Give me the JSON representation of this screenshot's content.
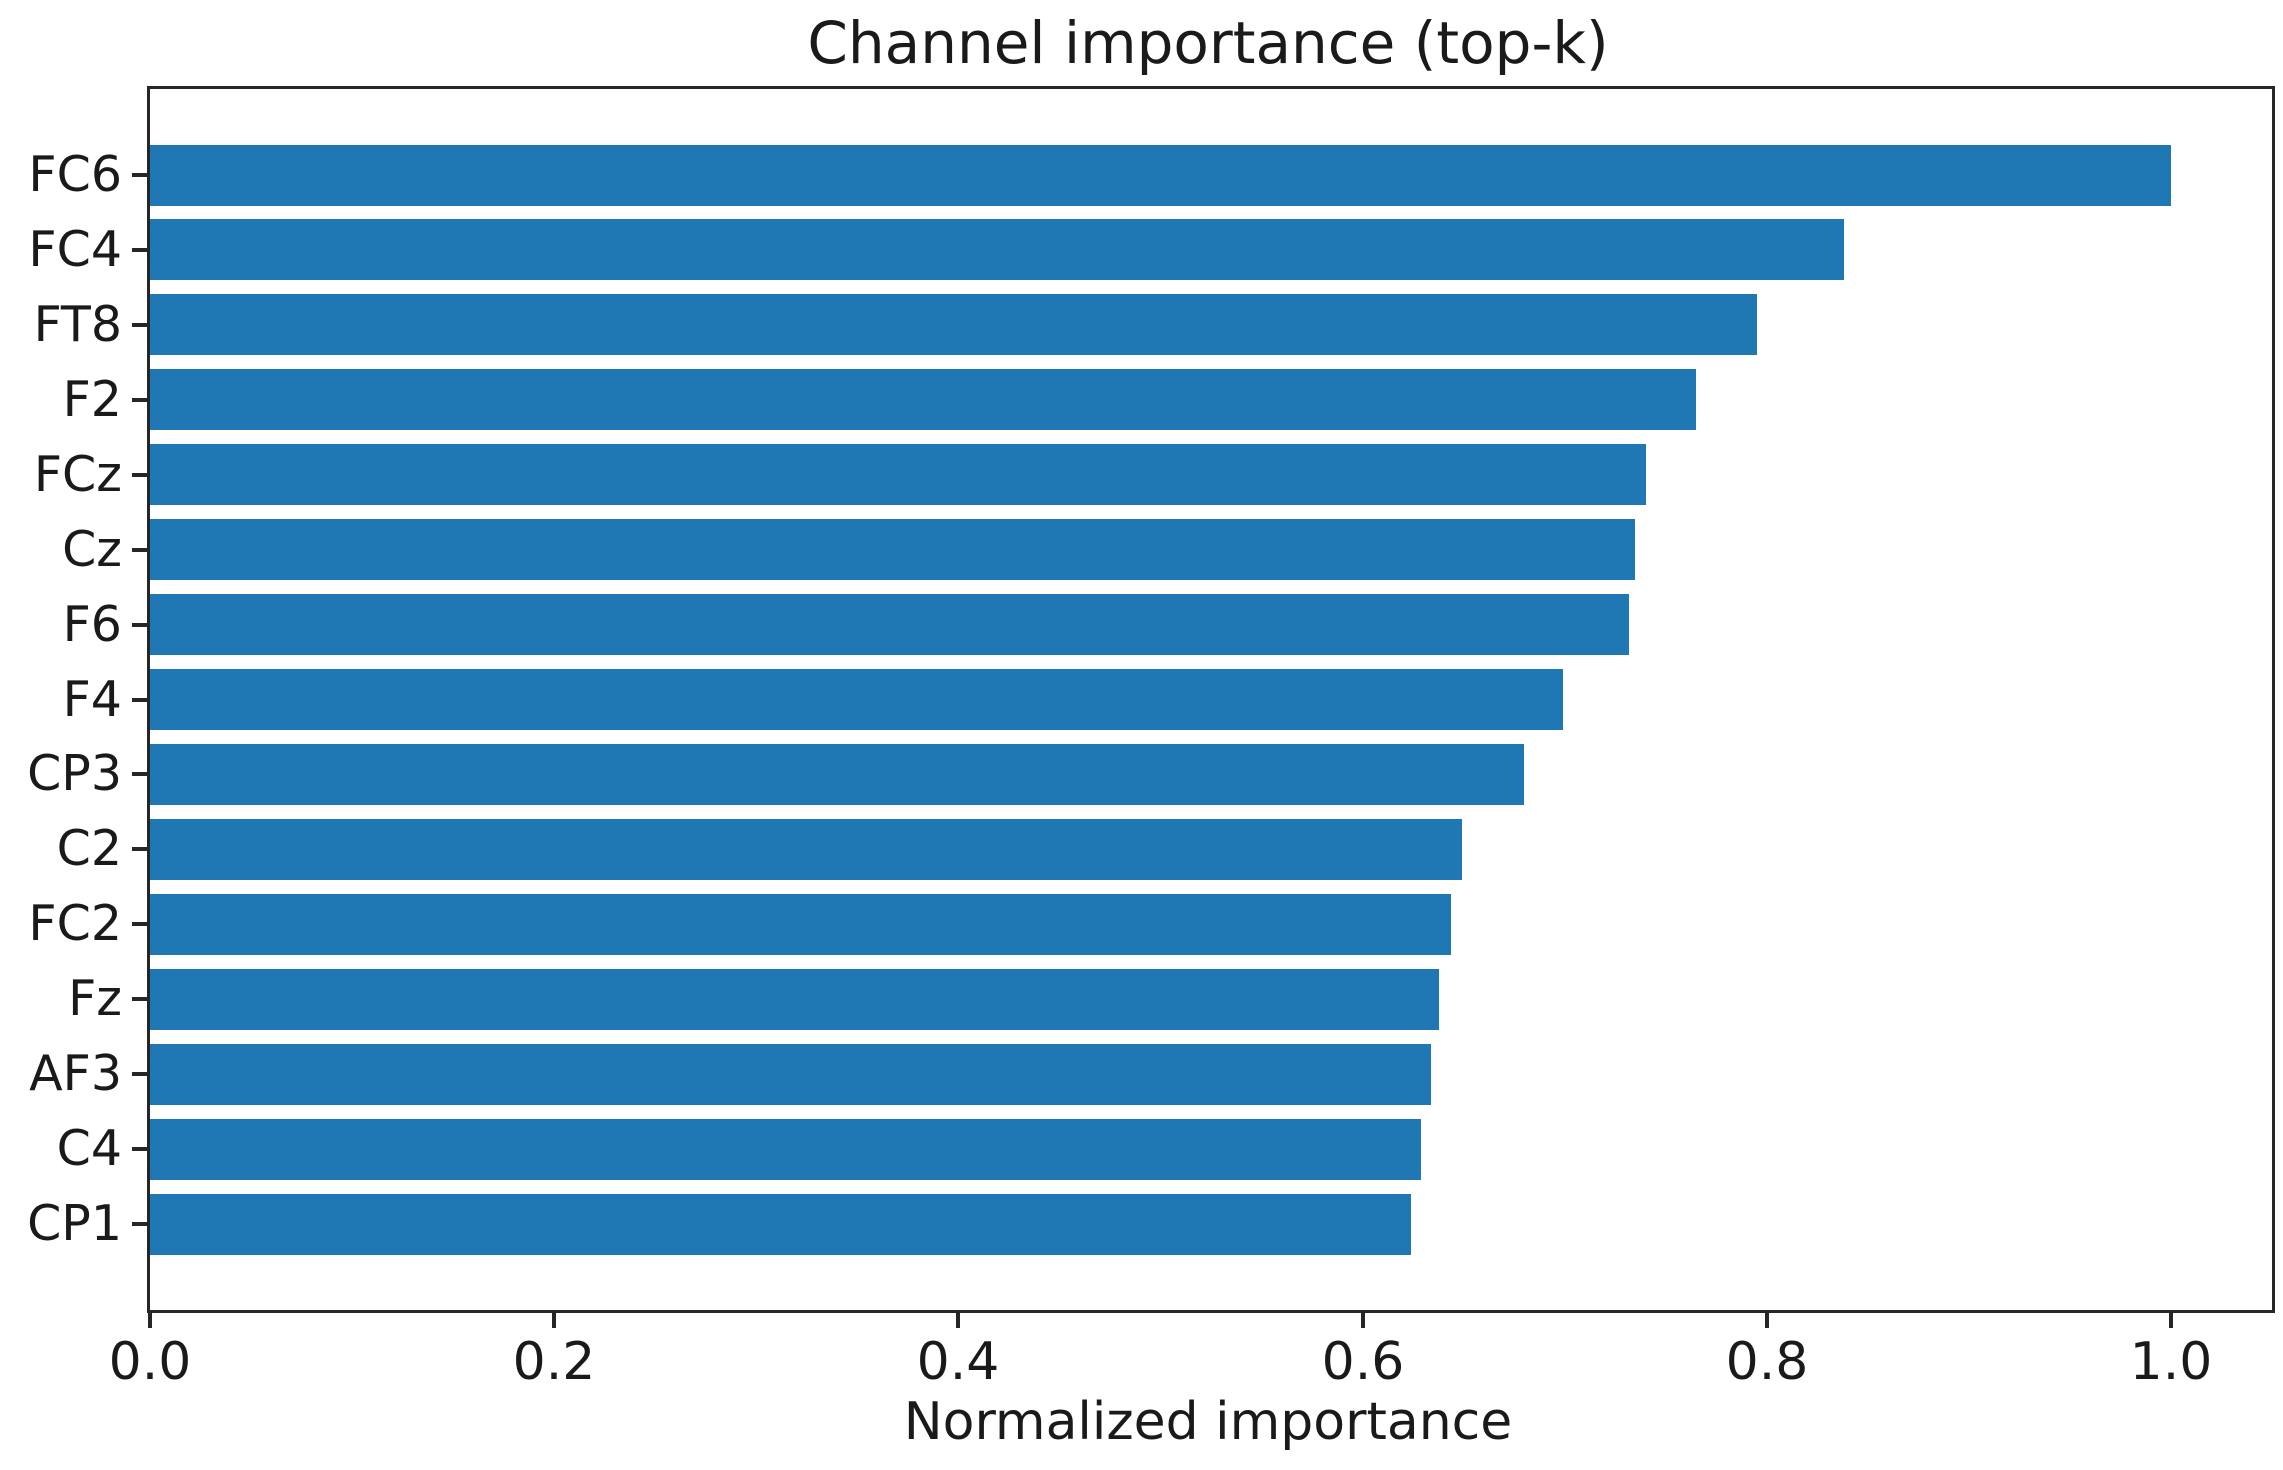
{
  "chart_data": {
    "type": "bar",
    "orientation": "horizontal",
    "title": "Channel importance (top-k)",
    "xlabel": "Normalized importance",
    "ylabel": "",
    "categories": [
      "FC6",
      "FC4",
      "FT8",
      "F2",
      "FCz",
      "Cz",
      "F6",
      "F4",
      "CP3",
      "C2",
      "FC2",
      "Fz",
      "AF3",
      "C4",
      "CP1"
    ],
    "values": [
      1.0,
      0.838,
      0.795,
      0.765,
      0.74,
      0.735,
      0.732,
      0.699,
      0.68,
      0.649,
      0.644,
      0.638,
      0.634,
      0.629,
      0.624
    ],
    "xlim": [
      0,
      1.05
    ],
    "xtick_labels": [
      "0.0",
      "0.2",
      "0.4",
      "0.6",
      "0.8",
      "1.0"
    ],
    "xtick_values": [
      0.0,
      0.2,
      0.4,
      0.6,
      0.8,
      1.0
    ],
    "grid": false,
    "legend": null,
    "bar_color": "#1f77b4",
    "axis_color": "#262626"
  }
}
